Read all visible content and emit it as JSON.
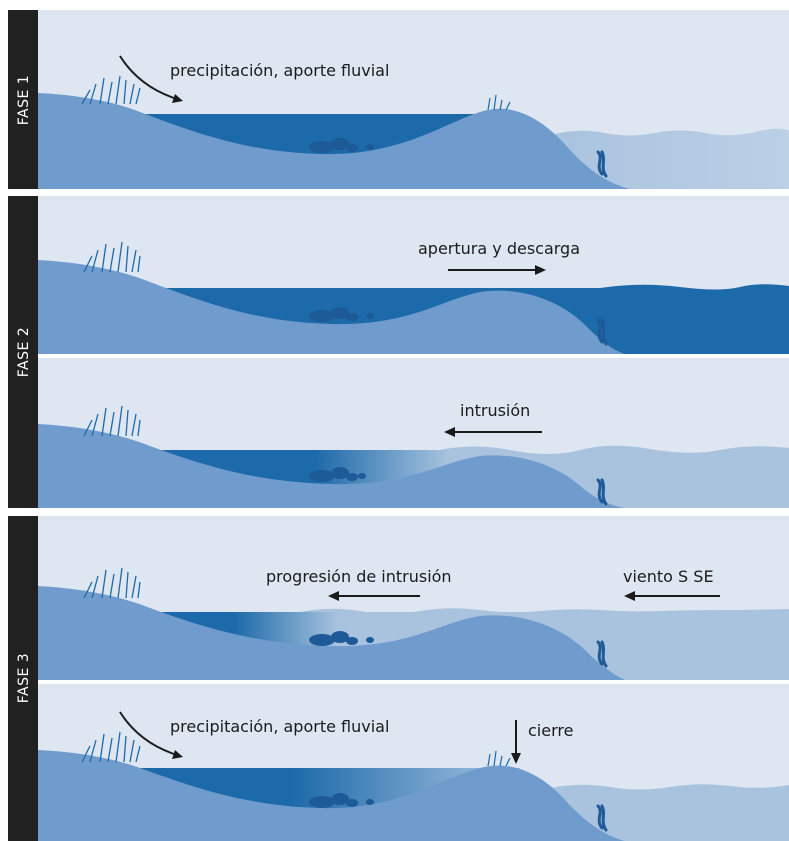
{
  "colors": {
    "sky": "#dde6f1",
    "land": "#6f9ccd",
    "lagoon": "#1d6aaa",
    "sea": "#a9c3df",
    "sidebar": "#212121",
    "arrow": "#1b1b1b"
  },
  "phases": [
    {
      "label": "FASE 1",
      "scenes": [
        {
          "annotations": [
            "precipitación, aporte fluvial"
          ]
        }
      ]
    },
    {
      "label": "FASE 2",
      "scenes": [
        {
          "annotations": [
            "apertura y descarga"
          ]
        },
        {
          "annotations": [
            "intrusión"
          ]
        }
      ]
    },
    {
      "label": "FASE 3",
      "scenes": [
        {
          "annotations": [
            "progresión de intrusión",
            "viento S SE"
          ]
        },
        {
          "annotations": [
            "precipitación, aporte fluvial",
            "cierre"
          ]
        }
      ]
    }
  ]
}
